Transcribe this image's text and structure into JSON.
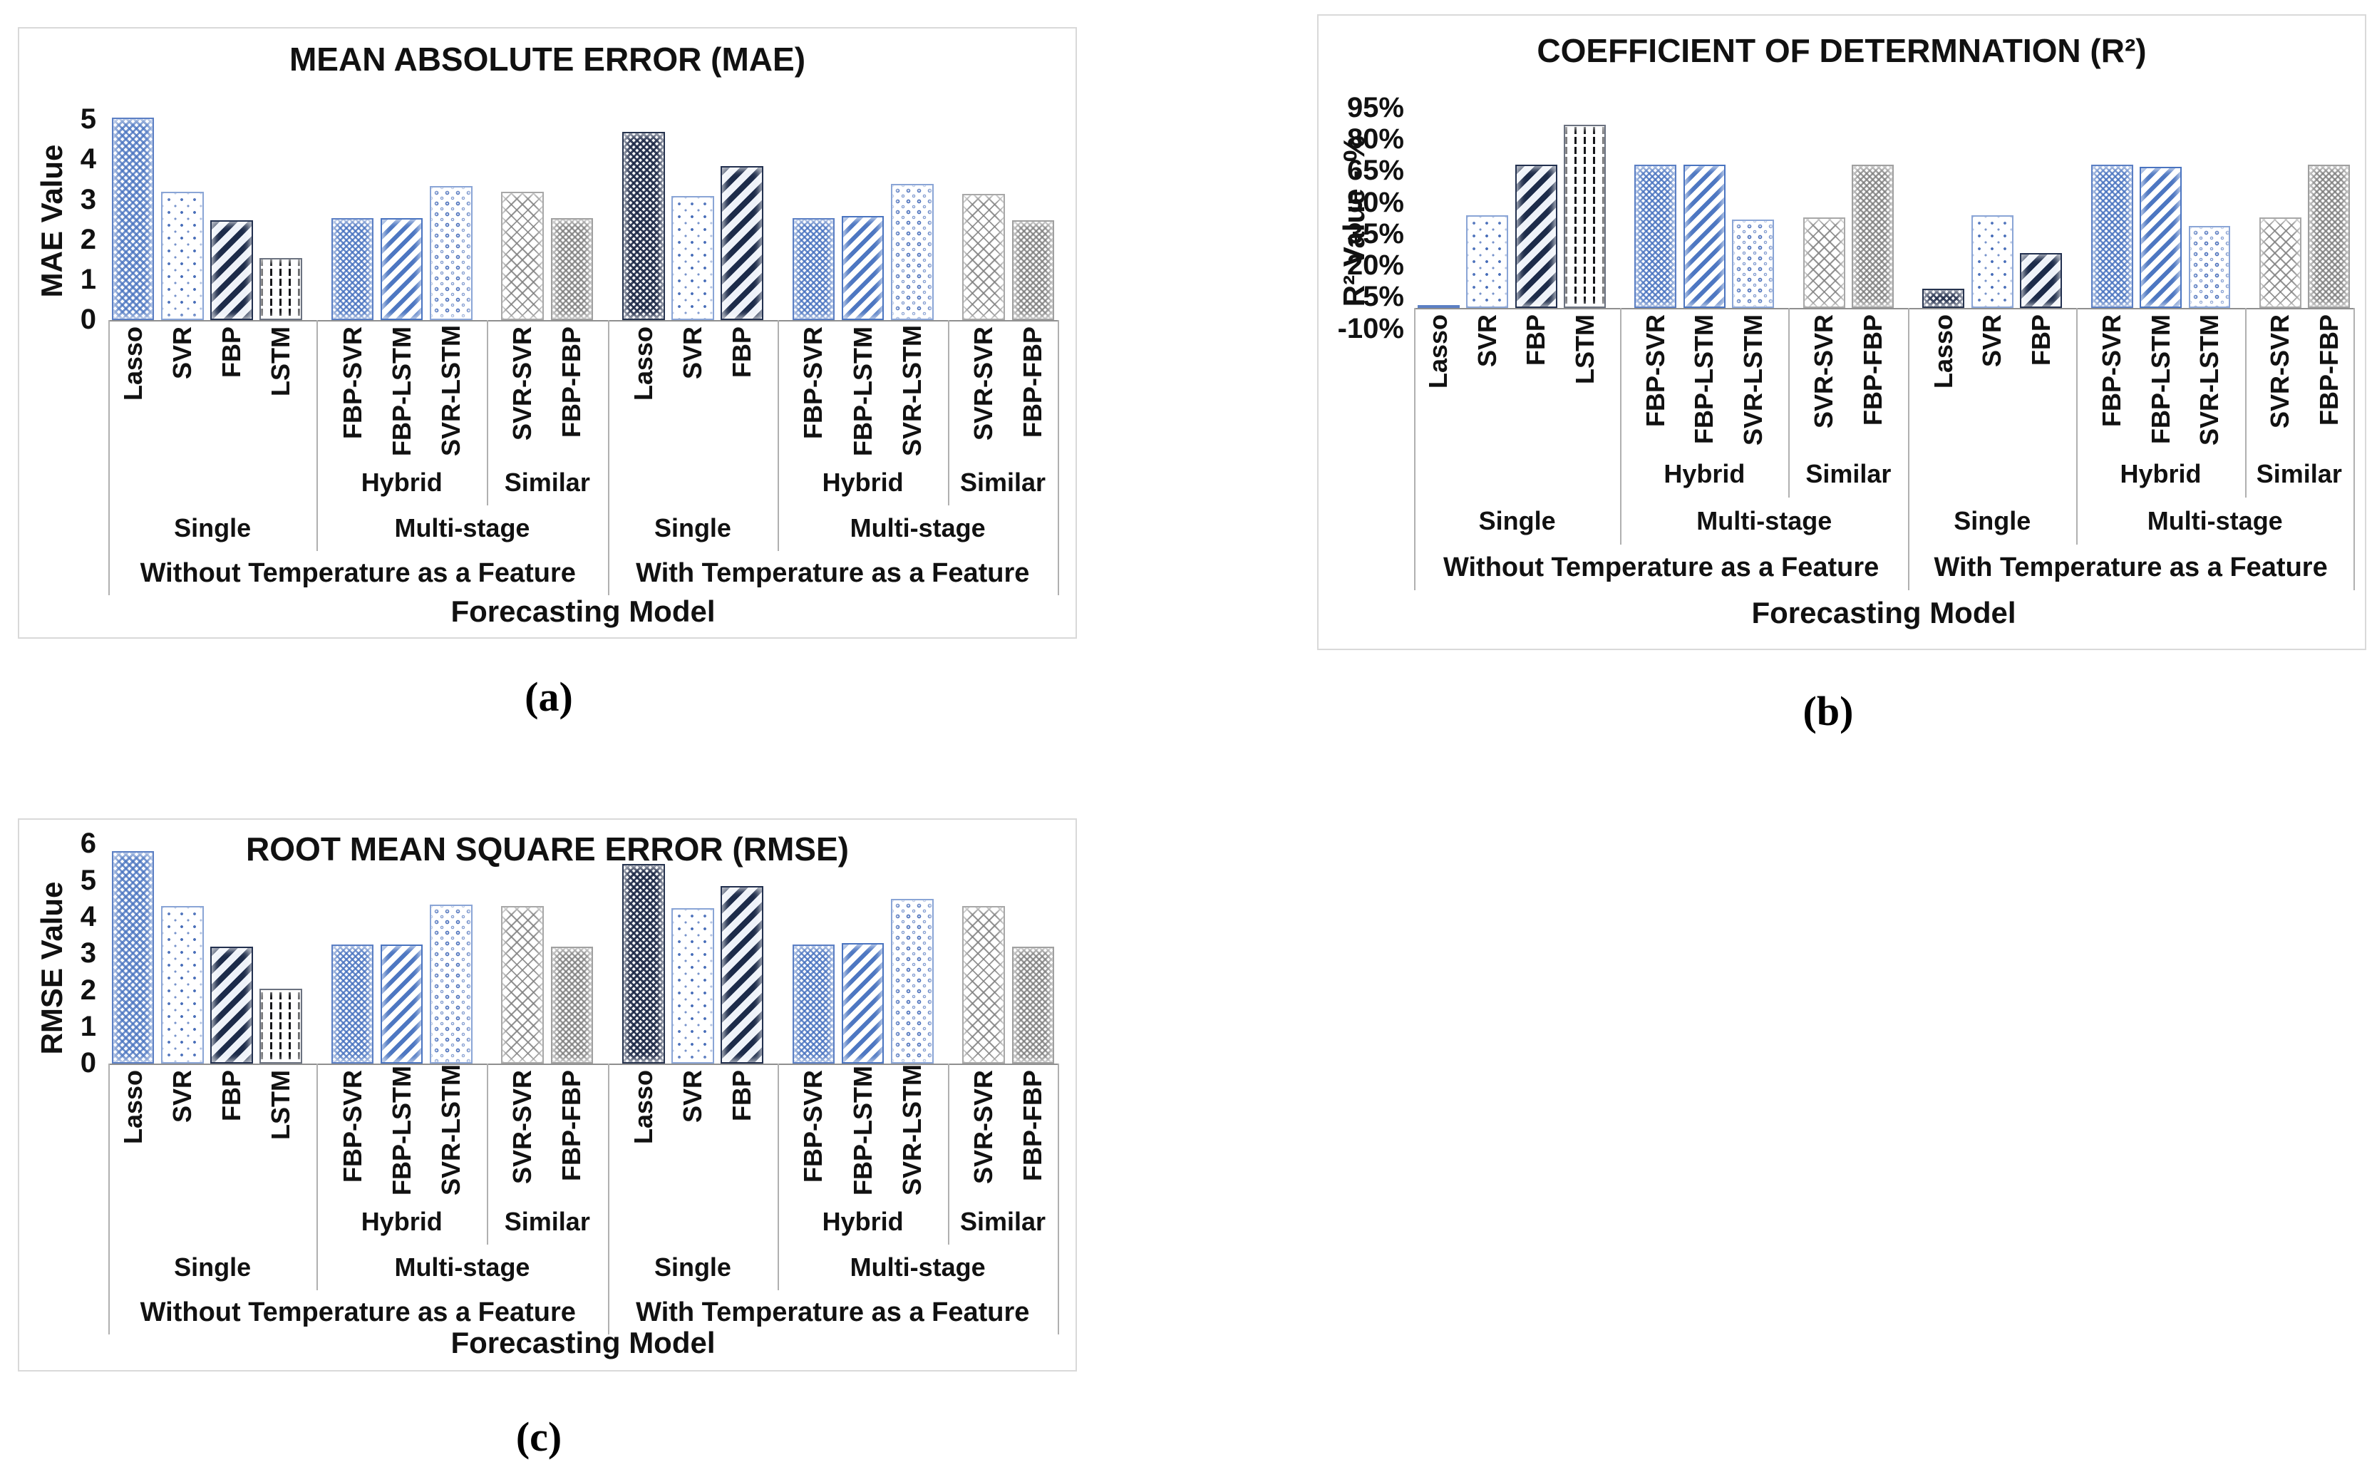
{
  "captions": {
    "a": "(a)",
    "b": "(b)",
    "c": "(c)"
  },
  "axis": {
    "x_title": "Forecasting Model",
    "level2": [
      "Hybrid",
      "Similar"
    ],
    "level3": [
      "Single",
      "Multi-stage"
    ],
    "level4": [
      "Without Temperature as a Feature",
      "With Temperature as a Feature"
    ]
  },
  "models_without": [
    "Lasso",
    "SVR",
    "FBP",
    "LSTM",
    "FBP-SVR",
    "FBP-LSTM",
    "SVR-LSTM",
    "SVR-SVR",
    "FBP-FBP"
  ],
  "models_with": [
    "Lasso",
    "SVR",
    "FBP",
    "FBP-SVR",
    "FBP-LSTM",
    "SVR-LSTM",
    "SVR-SVR",
    "FBP-FBP"
  ],
  "bar_patterns": [
    "blue-weave",
    "blue-dots",
    "dark-stripes",
    "black-dashes",
    "blue-checker",
    "blue-stripes",
    "blue-rings",
    "grey-diamond",
    "grey-weave",
    "dark-weave",
    "blue-dots",
    "dark-stripes",
    "blue-checker",
    "blue-stripes",
    "blue-rings",
    "grey-diamond",
    "grey-weave"
  ],
  "colors": {
    "accent_blue": "#4a74c0",
    "dark_navy": "#1f2c49",
    "grey": "#9a9a9a",
    "box_border": "#d9d9d9",
    "axis_line": "#8f8f8f",
    "text": "#111111"
  },
  "chart_data": [
    {
      "id": "mae",
      "type": "bar",
      "title": "MEAN ABSOLUTE ERROR (MAE)",
      "ylabel": "MAE Value",
      "xlabel": "Forecasting Model",
      "ylim": [
        0,
        5.7
      ],
      "grid": false,
      "legend": false,
      "yticks": [
        {
          "label": "5",
          "value": 5
        },
        {
          "label": "4",
          "value": 4
        },
        {
          "label": "3",
          "value": 3
        },
        {
          "label": "2",
          "value": 2
        },
        {
          "label": "1",
          "value": 1
        },
        {
          "label": "0",
          "value": 0
        }
      ],
      "series": [
        {
          "name": "Without Temperature as a Feature",
          "categories": [
            "Lasso",
            "SVR",
            "FBP",
            "LSTM",
            "FBP-SVR",
            "FBP-LSTM",
            "SVR-LSTM",
            "SVR-SVR",
            "FBP-FBP"
          ],
          "values": [
            5.05,
            3.2,
            2.5,
            1.55,
            2.55,
            2.55,
            3.35,
            3.2,
            2.55
          ]
        },
        {
          "name": "With Temperature as a Feature",
          "categories": [
            "Lasso",
            "SVR",
            "FBP",
            "FBP-SVR",
            "FBP-LSTM",
            "SVR-LSTM",
            "SVR-SVR",
            "FBP-FBP"
          ],
          "values": [
            4.7,
            3.1,
            3.85,
            2.55,
            2.6,
            3.4,
            3.15,
            2.5
          ]
        }
      ]
    },
    {
      "id": "r2",
      "type": "bar",
      "title": "COEFFICIENT OF DETERMNATION (R²)",
      "ylabel": "R² Value - %",
      "xlabel": "Forecasting Model",
      "ylim": [
        -10,
        100
      ],
      "grid": false,
      "legend": false,
      "yticks": [
        {
          "label": "95%",
          "value": 95
        },
        {
          "label": "80%",
          "value": 80
        },
        {
          "label": "65%",
          "value": 65
        },
        {
          "label": "50%",
          "value": 50
        },
        {
          "label": "35%",
          "value": 35
        },
        {
          "label": "20%",
          "value": 20
        },
        {
          "label": "5%",
          "value": 5
        },
        {
          "label": "-10%",
          "value": -10
        }
      ],
      "series": [
        {
          "name": "Without Temperature as a Feature",
          "categories": [
            "Lasso",
            "SVR",
            "FBP",
            "LSTM",
            "FBP-SVR",
            "FBP-LSTM",
            "SVR-LSTM",
            "SVR-SVR",
            "FBP-FBP"
          ],
          "values": [
            1.5,
            44,
            68,
            87,
            68,
            68,
            42,
            43,
            68
          ]
        },
        {
          "name": "With Temperature as a Feature",
          "categories": [
            "Lasso",
            "SVR",
            "FBP",
            "FBP-SVR",
            "FBP-LSTM",
            "SVR-LSTM",
            "SVR-SVR",
            "FBP-FBP"
          ],
          "values": [
            9,
            44,
            26,
            68,
            67,
            39,
            43,
            68
          ]
        }
      ]
    },
    {
      "id": "rmse",
      "type": "bar",
      "title": "ROOT MEAN SQUARE ERROR (RMSE)",
      "ylabel": "RMSE Value",
      "xlabel": "Forecasting Model",
      "ylim": [
        0,
        6.2
      ],
      "grid": false,
      "legend": false,
      "yticks": [
        {
          "label": "6",
          "value": 6
        },
        {
          "label": "5",
          "value": 5
        },
        {
          "label": "4",
          "value": 4
        },
        {
          "label": "3",
          "value": 3
        },
        {
          "label": "2",
          "value": 2
        },
        {
          "label": "1",
          "value": 1
        },
        {
          "label": "0",
          "value": 0
        }
      ],
      "series": [
        {
          "name": "Without Temperature as a Feature",
          "categories": [
            "Lasso",
            "SVR",
            "FBP",
            "LSTM",
            "FBP-SVR",
            "FBP-LSTM",
            "SVR-LSTM",
            "SVR-SVR",
            "FBP-FBP"
          ],
          "values": [
            5.8,
            4.3,
            3.2,
            2.05,
            3.25,
            3.25,
            4.35,
            4.3,
            3.2
          ]
        },
        {
          "name": "With Temperature as a Feature",
          "categories": [
            "Lasso",
            "SVR",
            "FBP",
            "FBP-SVR",
            "FBP-LSTM",
            "SVR-LSTM",
            "SVR-SVR",
            "FBP-FBP"
          ],
          "values": [
            5.45,
            4.25,
            4.85,
            3.25,
            3.3,
            4.5,
            4.3,
            3.2
          ]
        }
      ]
    }
  ]
}
